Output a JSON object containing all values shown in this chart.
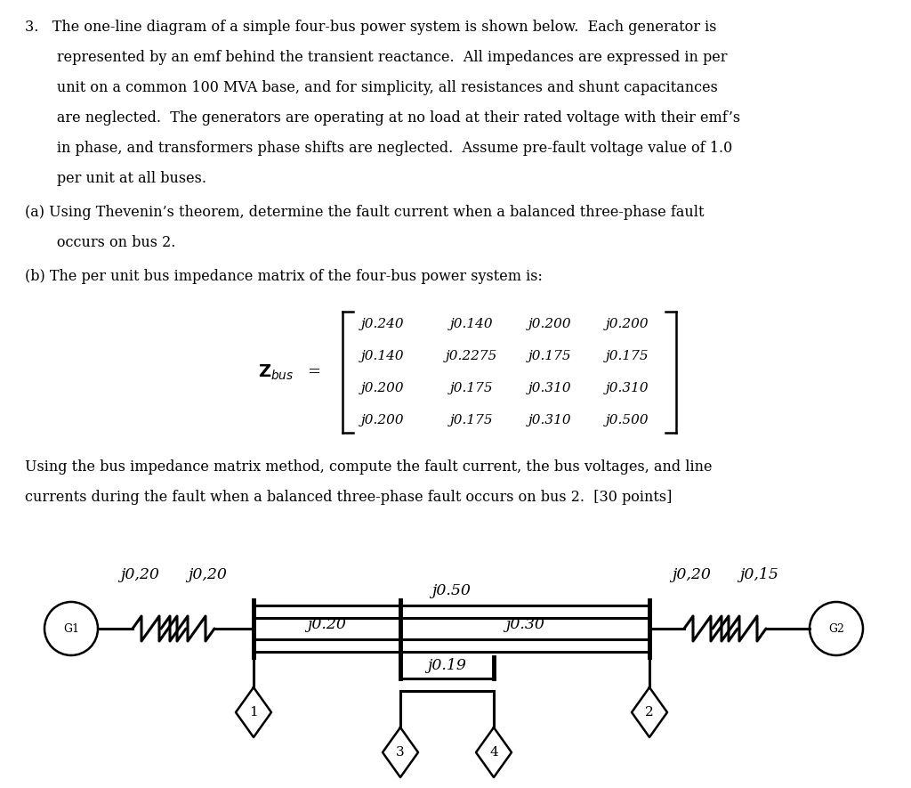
{
  "bg_color": "#ffffff",
  "text_color": "#000000",
  "text_lines": [
    "3.   The one-line diagram of a simple four-bus power system is shown below.  Each generator is",
    "       represented by an emf behind the transient reactance.  All impedances are expressed in per",
    "       unit on a common 100 MVA base, and for simplicity, all resistances and shunt capacitances",
    "       are neglected.  The generators are operating at no load at their rated voltage with their emf’s",
    "       in phase, and transformers phase shifts are neglected.  Assume pre-fault voltage value of 1.0",
    "       per unit at all buses."
  ],
  "part_a_line1": "(a) Using Thevenin’s theorem, determine the fault current when a balanced three-phase fault",
  "part_a_line2": "       occurs on bus 2.",
  "part_b": "(b) The per unit bus impedance matrix of the four-bus power system is:",
  "matrix": [
    [
      "j0.240",
      "j0.140",
      "j0.200",
      "j0.200"
    ],
    [
      "j0.140",
      "j0.2275",
      "j0.175",
      "j0.175"
    ],
    [
      "j0.200",
      "j0.175",
      "j0.310",
      "j0.310"
    ],
    [
      "j0.200",
      "j0.175",
      "j0.310",
      "j0.500"
    ]
  ],
  "part_c_line1": "Using the bus impedance matrix method, compute the fault current, the bus voltages, and line",
  "part_c_line2": "currents during the fault when a balanced three-phase fault occurs on bus 2.  [30 points]",
  "font_size_text": 11.5,
  "font_size_matrix": 11.0,
  "font_size_diag": 12.5,
  "lw_line": 2.2,
  "lw_bar": 3.5,
  "lw_bracket": 1.8
}
